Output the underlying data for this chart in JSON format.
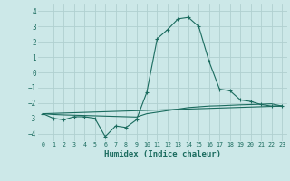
{
  "xlabel": "Humidex (Indice chaleur)",
  "ylabel": "",
  "bg_color": "#cce8e8",
  "grid_color": "#b0d0d0",
  "line_color": "#1a6b5e",
  "xlim": [
    -0.5,
    23.5
  ],
  "ylim": [
    -4.5,
    4.5
  ],
  "yticks": [
    -4,
    -3,
    -2,
    -1,
    0,
    1,
    2,
    3,
    4
  ],
  "xticks": [
    0,
    1,
    2,
    3,
    4,
    5,
    6,
    7,
    8,
    9,
    10,
    11,
    12,
    13,
    14,
    15,
    16,
    17,
    18,
    19,
    20,
    21,
    22,
    23
  ],
  "series1_x": [
    0,
    1,
    2,
    3,
    4,
    5,
    6,
    7,
    8,
    9,
    10,
    11,
    12,
    13,
    14,
    15,
    16,
    17,
    18,
    19,
    20,
    21,
    22,
    23
  ],
  "series1_y": [
    -2.7,
    -3.0,
    -3.1,
    -2.9,
    -2.9,
    -3.0,
    -4.2,
    -3.5,
    -3.6,
    -3.1,
    -1.3,
    2.2,
    2.8,
    3.5,
    3.6,
    3.0,
    0.7,
    -1.1,
    -1.2,
    -1.8,
    -1.9,
    -2.1,
    -2.2,
    -2.2
  ],
  "series2_x": [
    0,
    1,
    2,
    3,
    4,
    5,
    6,
    7,
    8,
    9,
    10,
    11,
    12,
    13,
    14,
    15,
    16,
    17,
    18,
    19,
    20,
    21,
    22,
    23
  ],
  "series2_y": [
    -2.7,
    -2.75,
    -2.78,
    -2.8,
    -2.82,
    -2.84,
    -2.86,
    -2.88,
    -2.9,
    -2.92,
    -2.7,
    -2.6,
    -2.5,
    -2.4,
    -2.3,
    -2.25,
    -2.2,
    -2.18,
    -2.15,
    -2.12,
    -2.1,
    -2.08,
    -2.05,
    -2.2
  ],
  "series3_x": [
    0,
    23
  ],
  "series3_y": [
    -2.7,
    -2.2
  ]
}
